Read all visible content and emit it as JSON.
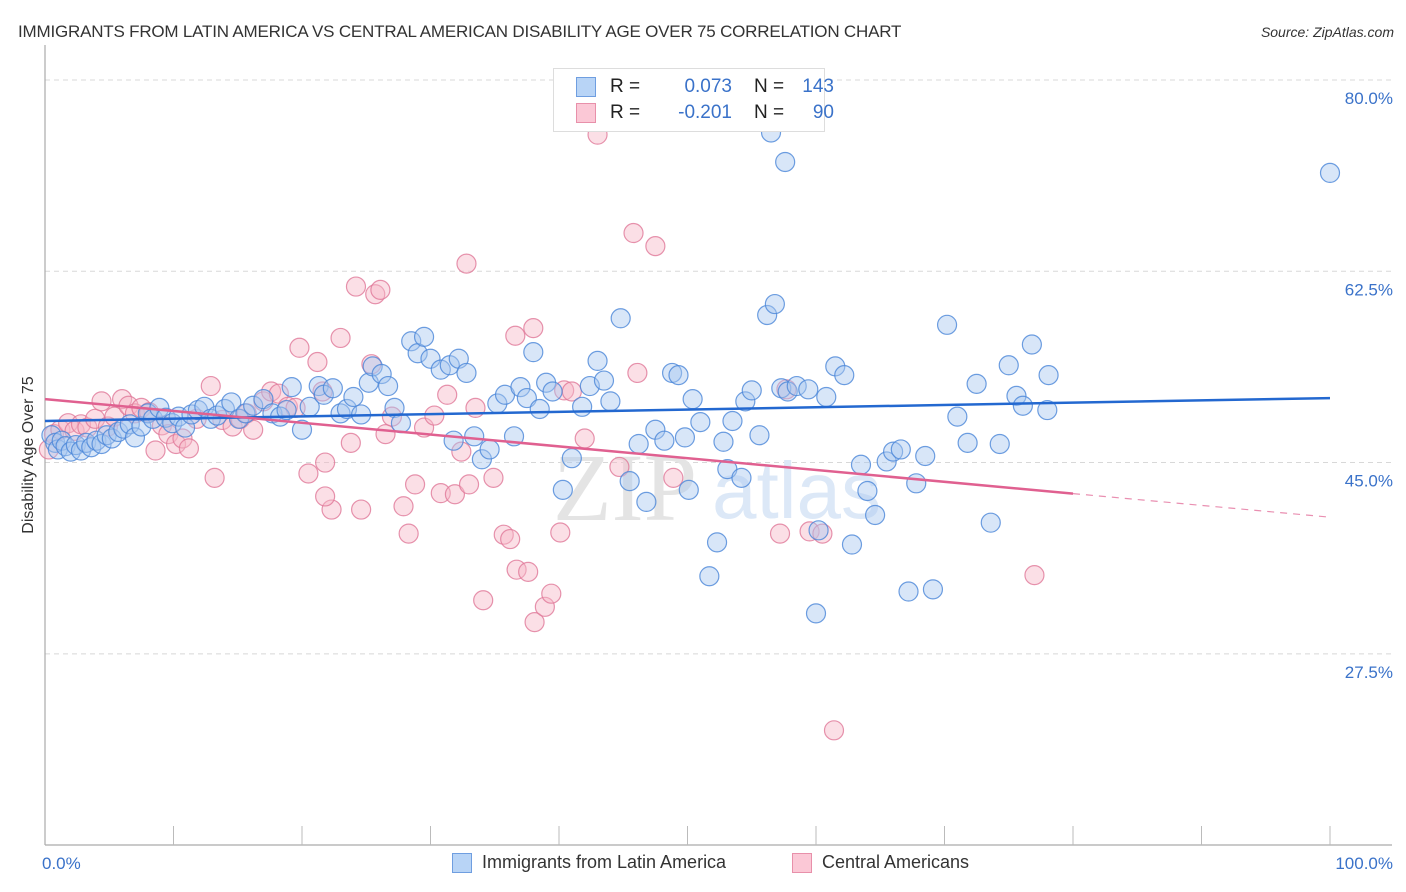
{
  "title": "IMMIGRANTS FROM LATIN AMERICA VS CENTRAL AMERICAN DISABILITY AGE OVER 75 CORRELATION CHART",
  "source": "Source: ZipAtlas.com",
  "watermark": {
    "zip": "ZIP",
    "atlas": "atlas"
  },
  "stats_legend": [
    {
      "r_label": "R =",
      "r_value": "0.073",
      "n_label": "N =",
      "n_value": "143"
    },
    {
      "r_label": "R =",
      "r_value": "-0.201",
      "n_label": "N =",
      "n_value": "90"
    }
  ],
  "colors": {
    "blue_fill": "#a8c8f0",
    "blue_stroke": "#4a86d8",
    "blue_line": "#2368d0",
    "pink_fill": "#f6b8c8",
    "pink_stroke": "#e07898",
    "pink_line": "#e06090",
    "tick_text": "#3a72c9"
  },
  "chart_data": {
    "type": "scatter",
    "title": "IMMIGRANTS FROM LATIN AMERICA VS CENTRAL AMERICAN DISABILITY AGE OVER 75 CORRELATION CHART",
    "xlabel": "",
    "ylabel": "Disability Age Over 75",
    "xlim": [
      0,
      100
    ],
    "ylim": [
      10,
      81.5
    ],
    "x_tick_labels": [
      "0.0%",
      "100.0%"
    ],
    "y_ticks": [
      27.5,
      45.0,
      62.5,
      80.0
    ],
    "y_tick_labels": [
      "27.5%",
      "45.0%",
      "62.5%",
      "80.0%"
    ],
    "grid": true,
    "legend_position": "bottom-center",
    "series": [
      {
        "name": "Immigrants from Latin America",
        "R": 0.073,
        "N": 143,
        "trend": {
          "x": [
            0,
            100
          ],
          "y": [
            48.8,
            50.9
          ],
          "dashed_from": null
        },
        "points": [
          [
            0.5,
            47.5
          ],
          [
            0.8,
            46.8
          ],
          [
            1.0,
            46.2
          ],
          [
            1.3,
            47.0
          ],
          [
            1.6,
            46.5
          ],
          [
            2.0,
            46.0
          ],
          [
            2.4,
            46.6
          ],
          [
            2.8,
            46.1
          ],
          [
            3.2,
            46.8
          ],
          [
            3.6,
            46.4
          ],
          [
            4.0,
            47.0
          ],
          [
            4.4,
            46.7
          ],
          [
            4.8,
            47.5
          ],
          [
            5.2,
            47.2
          ],
          [
            5.7,
            47.8
          ],
          [
            6.1,
            48.1
          ],
          [
            6.6,
            48.5
          ],
          [
            7.0,
            47.3
          ],
          [
            7.5,
            48.3
          ],
          [
            8.0,
            49.5
          ],
          [
            8.4,
            49.0
          ],
          [
            8.9,
            50.0
          ],
          [
            9.4,
            49.1
          ],
          [
            9.9,
            48.6
          ],
          [
            10.4,
            49.2
          ],
          [
            10.9,
            48.2
          ],
          [
            11.4,
            49.4
          ],
          [
            11.9,
            49.8
          ],
          [
            12.4,
            50.1
          ],
          [
            12.9,
            49.0
          ],
          [
            13.4,
            49.3
          ],
          [
            14.0,
            49.9
          ],
          [
            14.5,
            50.5
          ],
          [
            15.1,
            49.0
          ],
          [
            15.6,
            49.5
          ],
          [
            16.2,
            50.2
          ],
          [
            17.0,
            50.8
          ],
          [
            17.7,
            49.5
          ],
          [
            18.3,
            49.2
          ],
          [
            18.8,
            49.8
          ],
          [
            19.2,
            51.9
          ],
          [
            20.0,
            48.0
          ],
          [
            20.6,
            50.1
          ],
          [
            21.3,
            52.0
          ],
          [
            21.7,
            51.2
          ],
          [
            22.4,
            51.8
          ],
          [
            23.0,
            49.5
          ],
          [
            23.5,
            49.9
          ],
          [
            24.0,
            51.0
          ],
          [
            24.6,
            49.4
          ],
          [
            25.2,
            52.3
          ],
          [
            25.5,
            53.8
          ],
          [
            26.2,
            53.1
          ],
          [
            26.7,
            52.0
          ],
          [
            27.2,
            50.0
          ],
          [
            27.7,
            48.6
          ],
          [
            28.5,
            56.1
          ],
          [
            29.0,
            55.0
          ],
          [
            29.5,
            56.5
          ],
          [
            30.0,
            54.5
          ],
          [
            30.8,
            53.5
          ],
          [
            31.5,
            53.9
          ],
          [
            32.2,
            54.5
          ],
          [
            32.8,
            53.2
          ],
          [
            31.8,
            47.0
          ],
          [
            33.4,
            47.4
          ],
          [
            34.0,
            45.3
          ],
          [
            34.6,
            46.2
          ],
          [
            35.2,
            50.4
          ],
          [
            35.8,
            51.2
          ],
          [
            36.5,
            47.4
          ],
          [
            37.0,
            51.9
          ],
          [
            37.5,
            50.9
          ],
          [
            38.0,
            55.1
          ],
          [
            38.5,
            49.9
          ],
          [
            39.0,
            52.3
          ],
          [
            39.5,
            51.5
          ],
          [
            40.3,
            42.5
          ],
          [
            41.0,
            45.4
          ],
          [
            41.8,
            50.1
          ],
          [
            42.4,
            52.0
          ],
          [
            43.0,
            54.3
          ],
          [
            43.5,
            52.5
          ],
          [
            44.0,
            50.6
          ],
          [
            44.8,
            58.2
          ],
          [
            45.5,
            43.3
          ],
          [
            46.2,
            46.7
          ],
          [
            46.8,
            41.4
          ],
          [
            47.5,
            48.0
          ],
          [
            48.2,
            47.0
          ],
          [
            48.8,
            53.2
          ],
          [
            49.3,
            53.0
          ],
          [
            49.8,
            47.3
          ],
          [
            50.4,
            50.8
          ],
          [
            51.0,
            48.7
          ],
          [
            51.7,
            34.6
          ],
          [
            52.3,
            37.7
          ],
          [
            52.8,
            46.9
          ],
          [
            53.5,
            48.8
          ],
          [
            53.1,
            44.4
          ],
          [
            54.5,
            50.6
          ],
          [
            55.0,
            51.6
          ],
          [
            55.6,
            47.5
          ],
          [
            56.2,
            58.5
          ],
          [
            56.8,
            59.5
          ],
          [
            57.3,
            51.8
          ],
          [
            57.8,
            51.5
          ],
          [
            58.5,
            52.0
          ],
          [
            59.4,
            51.7
          ],
          [
            60.2,
            38.8
          ],
          [
            60.8,
            51.0
          ],
          [
            61.5,
            53.8
          ],
          [
            62.2,
            53.0
          ],
          [
            62.8,
            37.5
          ],
          [
            63.5,
            44.8
          ],
          [
            64.0,
            42.4
          ],
          [
            64.6,
            40.2
          ],
          [
            65.5,
            45.1
          ],
          [
            66.0,
            46.0
          ],
          [
            66.6,
            46.2
          ],
          [
            67.2,
            33.2
          ],
          [
            67.8,
            43.1
          ],
          [
            68.5,
            45.6
          ],
          [
            69.1,
            33.4
          ],
          [
            70.2,
            57.6
          ],
          [
            71.0,
            49.2
          ],
          [
            71.8,
            46.8
          ],
          [
            72.5,
            52.2
          ],
          [
            73.6,
            39.5
          ],
          [
            74.3,
            46.7
          ],
          [
            75.0,
            53.9
          ],
          [
            75.6,
            51.1
          ],
          [
            76.1,
            50.2
          ],
          [
            76.8,
            55.8
          ],
          [
            78.1,
            53.0
          ],
          [
            78.0,
            49.8
          ],
          [
            56.5,
            75.2
          ],
          [
            57.6,
            72.5
          ],
          [
            58.6,
            78.2
          ],
          [
            100.0,
            71.5
          ],
          [
            54.2,
            43.6
          ],
          [
            50.1,
            42.5
          ],
          [
            60.0,
            31.2
          ]
        ]
      },
      {
        "name": "Central Americans",
        "R": -0.201,
        "N": 90,
        "trend": {
          "x": [
            0,
            100
          ],
          "y": [
            50.8,
            40.0
          ],
          "dashed_from": 80
        },
        "points": [
          [
            0.3,
            46.2
          ],
          [
            0.7,
            47.6
          ],
          [
            1.2,
            48.0
          ],
          [
            1.8,
            48.6
          ],
          [
            2.3,
            47.9
          ],
          [
            2.8,
            48.5
          ],
          [
            3.3,
            48.2
          ],
          [
            3.9,
            49.0
          ],
          [
            4.4,
            50.6
          ],
          [
            4.9,
            48.3
          ],
          [
            5.4,
            49.2
          ],
          [
            6.0,
            50.8
          ],
          [
            6.5,
            50.2
          ],
          [
            7.0,
            49.5
          ],
          [
            7.5,
            50.0
          ],
          [
            8.1,
            49.6
          ],
          [
            8.6,
            46.1
          ],
          [
            9.1,
            48.4
          ],
          [
            9.6,
            47.6
          ],
          [
            10.2,
            46.7
          ],
          [
            10.7,
            47.2
          ],
          [
            11.2,
            46.3
          ],
          [
            11.8,
            49.0
          ],
          [
            12.9,
            52.0
          ],
          [
            13.2,
            43.6
          ],
          [
            13.8,
            48.9
          ],
          [
            14.6,
            48.3
          ],
          [
            15.2,
            49.0
          ],
          [
            15.7,
            49.5
          ],
          [
            16.2,
            48.0
          ],
          [
            17.0,
            50.6
          ],
          [
            17.6,
            51.5
          ],
          [
            18.2,
            51.3
          ],
          [
            18.9,
            50.1
          ],
          [
            19.5,
            50.0
          ],
          [
            19.8,
            55.5
          ],
          [
            20.5,
            44.0
          ],
          [
            21.2,
            54.2
          ],
          [
            21.6,
            51.5
          ],
          [
            21.8,
            45.0
          ],
          [
            22.3,
            40.7
          ],
          [
            23.0,
            56.4
          ],
          [
            23.8,
            46.8
          ],
          [
            24.2,
            61.1
          ],
          [
            24.6,
            40.7
          ],
          [
            25.4,
            54.0
          ],
          [
            25.7,
            60.4
          ],
          [
            26.1,
            60.8
          ],
          [
            26.5,
            47.6
          ],
          [
            27.0,
            49.2
          ],
          [
            27.9,
            41.0
          ],
          [
            28.3,
            38.5
          ],
          [
            28.8,
            43.0
          ],
          [
            29.5,
            48.2
          ],
          [
            30.3,
            49.3
          ],
          [
            30.8,
            42.2
          ],
          [
            31.3,
            51.2
          ],
          [
            31.9,
            42.1
          ],
          [
            32.4,
            46.0
          ],
          [
            33.0,
            43.0
          ],
          [
            33.5,
            50.0
          ],
          [
            34.1,
            32.4
          ],
          [
            34.9,
            43.6
          ],
          [
            35.7,
            38.4
          ],
          [
            36.2,
            38.0
          ],
          [
            36.7,
            35.2
          ],
          [
            37.6,
            35.0
          ],
          [
            38.1,
            30.4
          ],
          [
            38.9,
            31.8
          ],
          [
            39.4,
            33.0
          ],
          [
            40.1,
            38.6
          ],
          [
            40.4,
            51.6
          ],
          [
            41.0,
            51.5
          ],
          [
            42.0,
            47.2
          ],
          [
            43.0,
            75.0
          ],
          [
            44.7,
            44.6
          ],
          [
            45.8,
            66.0
          ],
          [
            47.5,
            64.8
          ],
          [
            32.8,
            63.2
          ],
          [
            36.6,
            56.6
          ],
          [
            38.0,
            57.3
          ],
          [
            46.1,
            53.2
          ],
          [
            48.9,
            43.6
          ],
          [
            57.2,
            38.5
          ],
          [
            59.5,
            38.7
          ],
          [
            60.5,
            38.5
          ],
          [
            61.4,
            20.5
          ],
          [
            77.0,
            34.7
          ],
          [
            57.7,
            51.7
          ],
          [
            21.8,
            41.9
          ]
        ]
      }
    ]
  },
  "bottom_legend": [
    {
      "label": "Immigrants from Latin America"
    },
    {
      "label": "Central Americans"
    }
  ]
}
